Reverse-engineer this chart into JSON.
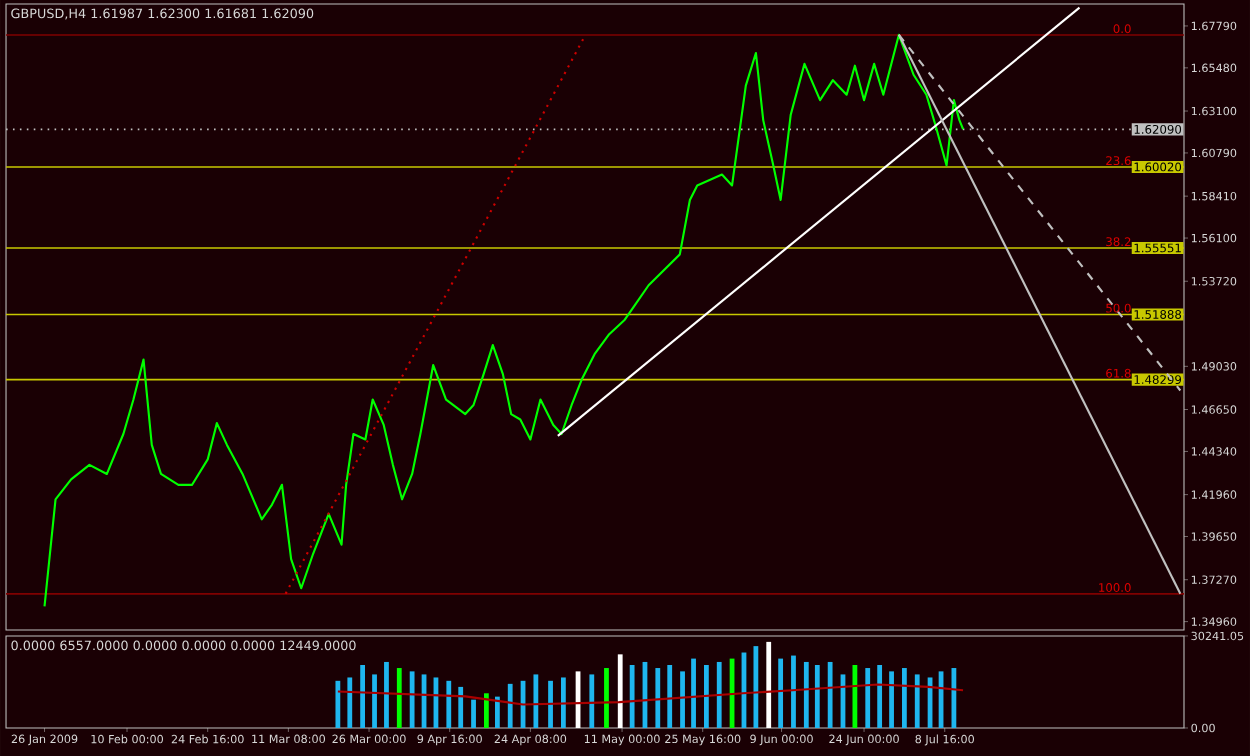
{
  "chart_data": [
    {
      "type": "line",
      "title": "GBPUSD,H4  1.61987 1.62300 1.61681 1.62090",
      "xlim": [
        "2009-01-19T00:00",
        "2009-08-21T04:00"
      ],
      "ylim": [
        1.345,
        1.69
      ],
      "tick_labels": "y",
      "yticks": [
        {
          "value": 1.6779,
          "label": "1.67790"
        },
        {
          "value": 1.6548,
          "label": "1.65480"
        },
        {
          "value": 1.631,
          "label": "1.63100"
        },
        {
          "value": 1.6079,
          "label": "1.60790"
        },
        {
          "value": 1.5841,
          "label": "1.58410"
        },
        {
          "value": 1.561,
          "label": "1.56100"
        },
        {
          "value": 1.5372,
          "label": "1.53720"
        },
        {
          "value": 1.4903,
          "label": "1.49030"
        },
        {
          "value": 1.4665,
          "label": "1.46650"
        },
        {
          "value": 1.4434,
          "label": "1.44340"
        },
        {
          "value": 1.4196,
          "label": "1.41960"
        },
        {
          "value": 1.3965,
          "label": "1.39650"
        },
        {
          "value": 1.3727,
          "label": "1.37270"
        },
        {
          "value": 1.3496,
          "label": "1.34960"
        }
      ],
      "series": [
        {
          "color": "#00ff00",
          "x": [
            "2009-01-26T00:00",
            "2009-01-28T00:00",
            "2009-01-30T20:00",
            "2009-02-03T04:00",
            "2009-02-06T08:00",
            "2009-02-09T08:00",
            "2009-02-11T04:00",
            "2009-02-13T00:00",
            "2009-02-14T12:00",
            "2009-02-16T04:00",
            "2009-02-19T08:00",
            "2009-02-21T20:00",
            "2009-02-24T16:00",
            "2009-02-26T08:00",
            "2009-02-28T04:00",
            "2009-03-03T00:00",
            "2009-03-06T12:00",
            "2009-03-08T08:00",
            "2009-03-10T04:00",
            "2009-03-11T20:00",
            "2009-03-13T16:00",
            "2009-03-15T20:00",
            "2009-03-18T16:00",
            "2009-03-21T00:00",
            "2009-03-21T20:00",
            "2009-03-23T04:00",
            "2009-03-25T08:00",
            "2009-03-26T16:00",
            "2009-03-28T16:00",
            "2009-03-30T08:00",
            "2009-04-01T00:00",
            "2009-04-02T20:00",
            "2009-04-04T08:00",
            "2009-04-06T16:00",
            "2009-04-09T00:00",
            "2009-04-12T12:00",
            "2009-04-14T00:00",
            "2009-04-15T20:00",
            "2009-04-17T12:00",
            "2009-04-19T08:00",
            "2009-04-20T20:00",
            "2009-04-22T12:00",
            "2009-04-24T08:00",
            "2009-04-26T04:00",
            "2009-04-28T12:00",
            "2009-04-30T00:00",
            "2009-05-01T20:00",
            "2009-05-03T16:00",
            "2009-05-06T00:00",
            "2009-05-08T16:00",
            "2009-05-11T12:00",
            "2009-05-13T08:00",
            "2009-05-15T20:00",
            "2009-05-21T12:00",
            "2009-05-23T08:00",
            "2009-05-24T16:00",
            "2009-05-29T04:00",
            "2009-05-31T00:00",
            "2009-06-01T12:00",
            "2009-06-02T12:00",
            "2009-06-04T08:00",
            "2009-06-05T16:00",
            "2009-06-07T12:00",
            "2009-06-08T20:00",
            "2009-06-10T16:00",
            "2009-06-13T04:00",
            "2009-06-16T00:00",
            "2009-06-18T08:00",
            "2009-06-20T20:00",
            "2009-06-22T08:00",
            "2009-06-24T00:00",
            "2009-06-25T20:00",
            "2009-06-27T12:00",
            "2009-06-30T08:00",
            "2009-07-03T00:00",
            "2009-07-05T08:00",
            "2009-07-07T00:00",
            "2009-07-09T00:00",
            "2009-07-10T08:00",
            "2009-07-11T08:00",
            "2009-07-12T00:00"
          ],
          "values": [
            1.358,
            1.417,
            1.428,
            1.436,
            1.431,
            1.453,
            1.472,
            1.494,
            1.447,
            1.431,
            1.425,
            1.425,
            1.439,
            1.459,
            1.447,
            1.431,
            1.406,
            1.414,
            1.425,
            1.384,
            1.368,
            1.387,
            1.409,
            1.392,
            1.425,
            1.453,
            1.45,
            1.472,
            1.458,
            1.436,
            1.417,
            1.431,
            1.453,
            1.491,
            1.472,
            1.464,
            1.469,
            1.486,
            1.502,
            1.486,
            1.464,
            1.461,
            1.45,
            1.472,
            1.458,
            1.453,
            1.469,
            1.483,
            1.497,
            1.508,
            1.516,
            1.524,
            1.535,
            1.552,
            1.582,
            1.59,
            1.596,
            1.59,
            1.623,
            1.645,
            1.663,
            1.626,
            1.601,
            1.582,
            1.629,
            1.657,
            1.637,
            1.648,
            1.64,
            1.656,
            1.637,
            1.657,
            1.64,
            1.673,
            1.651,
            1.64,
            1.623,
            1.601,
            1.637,
            1.626,
            1.621
          ]
        },
        {
          "color": "#ffffff",
          "x": [
            "2009-04-29T08:00",
            "2009-08-02T04:00"
          ],
          "values": [
            1.452,
            1.688
          ]
        },
        {
          "color": "#cc0000",
          "line_style": "dotted",
          "x": [
            "2009-03-10T20:00",
            "2009-05-04T04:00"
          ],
          "values": [
            1.365,
            1.672
          ]
        },
        {
          "color": "#c0c0c0",
          "x": [
            "2009-06-30T08:00",
            "2009-08-20T12:00"
          ],
          "values": [
            1.673,
            1.365
          ]
        },
        {
          "color": "#c0c0c0",
          "line_style": "dashed",
          "x": [
            "2009-06-30T08:00",
            "2009-08-20T12:00"
          ],
          "values": [
            1.673,
            1.477
          ]
        }
      ],
      "ref_lines": [
        {
          "axis": "y",
          "value": 1.6729,
          "label": null,
          "color": "#800000"
        },
        {
          "axis": "y",
          "value": 1.6002,
          "label": "1.60020",
          "color": "#c8c800"
        },
        {
          "axis": "y",
          "value": 1.55551,
          "label": "1.55551",
          "color": "#c8c800"
        },
        {
          "axis": "y",
          "value": 1.51888,
          "label": "1.51888",
          "color": "#c8c800"
        },
        {
          "axis": "y",
          "value": 1.48299,
          "label": "1.48299",
          "color": "#c8c800"
        },
        {
          "axis": "y",
          "value": 1.3649,
          "label": null,
          "color": "#800000"
        },
        {
          "axis": "y",
          "value": 1.6209,
          "label": "1.62090",
          "color": "#c0c0c0",
          "line_style": "dotted"
        }
      ],
      "annotations": [
        {
          "text": "0.0",
          "y": 1.6729
        },
        {
          "text": "23.6",
          "y": 1.6002
        },
        {
          "text": "38.2",
          "y": 1.55551
        },
        {
          "text": "50.0",
          "y": 1.51888
        },
        {
          "text": "61.8",
          "y": 1.48299
        },
        {
          "text": "100.0",
          "y": 1.3649
        }
      ]
    },
    {
      "type": "bar",
      "title": "0.0000 6557.0000 0.0000 0.0000 0.0000 12449.0000",
      "xlim": [
        "2009-01-19T00:00",
        "2009-08-21T04:00"
      ],
      "ylim": [
        0,
        30241.05
      ],
      "xticks": [
        {
          "value": "2009-01-26T00:00",
          "label": "26 Jan 2009"
        },
        {
          "value": "2009-02-10T00:00",
          "label": "10 Feb 00:00"
        },
        {
          "value": "2009-02-24T16:00",
          "label": "24 Feb 16:00"
        },
        {
          "value": "2009-03-11T08:00",
          "label": "11 Mar 08:00"
        },
        {
          "value": "2009-03-26T00:00",
          "label": "26 Mar 00:00"
        },
        {
          "value": "2009-04-09T16:00",
          "label": "9 Apr 16:00"
        },
        {
          "value": "2009-04-24T08:00",
          "label": "24 Apr 08:00"
        },
        {
          "value": "2009-05-11T00:00",
          "label": "11 May 00:00"
        },
        {
          "value": "2009-05-25T16:00",
          "label": "25 May 16:00"
        },
        {
          "value": "2009-06-09T00:00",
          "label": "9 Jun 00:00"
        },
        {
          "value": "2009-06-24T00:00",
          "label": "24 Jun 00:00"
        },
        {
          "value": "2009-07-08T16:00",
          "label": "8 Jul 16:00"
        }
      ],
      "yticks": [
        {
          "value": 0,
          "label": "0.00"
        },
        {
          "value": 30241.05,
          "label": "30241.05"
        }
      ],
      "series": [
        {
          "x": [
            "2009-03-20T08:00",
            "2009-03-22T12:00",
            "2009-03-24T20:00",
            "2009-03-27T00:00",
            "2009-03-29T04:00",
            "2009-03-31T12:00",
            "2009-04-02T20:00",
            "2009-04-05T00:00",
            "2009-04-07T04:00",
            "2009-04-09T12:00",
            "2009-04-11T16:00",
            "2009-04-14T00:00",
            "2009-04-16T08:00",
            "2009-04-18T08:00",
            "2009-04-20T16:00",
            "2009-04-23T00:00",
            "2009-04-25T08:00",
            "2009-04-28T00:00",
            "2009-04-30T08:00",
            "2009-05-03T00:00",
            "2009-05-05T12:00",
            "2009-05-08T04:00",
            "2009-05-10T16:00",
            "2009-05-12T20:00",
            "2009-05-15T04:00",
            "2009-05-17T12:00",
            "2009-05-19T16:00",
            "2009-05-22T00:00",
            "2009-05-24T00:00",
            "2009-05-26T08:00",
            "2009-05-28T16:00",
            "2009-05-31T00:00",
            "2009-06-02T04:00",
            "2009-06-04T08:00",
            "2009-06-06T16:00",
            "2009-06-08T20:00",
            "2009-06-11T04:00",
            "2009-06-13T12:00",
            "2009-06-15T12:00",
            "2009-06-17T20:00",
            "2009-06-20T04:00",
            "2009-06-22T08:00",
            "2009-06-24T16:00",
            "2009-06-26T20:00",
            "2009-06-29T00:00",
            "2009-07-01T08:00",
            "2009-07-03T16:00",
            "2009-07-06T00:00",
            "2009-07-08T00:00",
            "2009-07-10T08:00"
          ],
          "values": [
            15500,
            16600,
            20700,
            17600,
            21700,
            19700,
            18600,
            17600,
            16600,
            15500,
            13500,
            9300,
            11400,
            10300,
            14500,
            15500,
            17600,
            15500,
            16600,
            18600,
            17600,
            19700,
            24200,
            20700,
            21700,
            19700,
            20700,
            18600,
            22800,
            20700,
            21700,
            22800,
            24800,
            26900,
            28300,
            22800,
            23800,
            21700,
            20700,
            21700,
            17600,
            20700,
            19700,
            20700,
            18600,
            19700,
            17600,
            16600,
            18600,
            19700
          ],
          "colors": [
            "#1fb6ef",
            "#1fb6ef",
            "#1fb6ef",
            "#1fb6ef",
            "#1fb6ef",
            "#00ff00",
            "#1fb6ef",
            "#1fb6ef",
            "#1fb6ef",
            "#1fb6ef",
            "#1fb6ef",
            "#1fb6ef",
            "#00ff00",
            "#1fb6ef",
            "#1fb6ef",
            "#1fb6ef",
            "#1fb6ef",
            "#1fb6ef",
            "#1fb6ef",
            "#ffffff",
            "#1fb6ef",
            "#00ff00",
            "#ffffff",
            "#1fb6ef",
            "#1fb6ef",
            "#1fb6ef",
            "#1fb6ef",
            "#1fb6ef",
            "#1fb6ef",
            "#1fb6ef",
            "#1fb6ef",
            "#00ff00",
            "#1fb6ef",
            "#1fb6ef",
            "#ffffff",
            "#1fb6ef",
            "#1fb6ef",
            "#1fb6ef",
            "#1fb6ef",
            "#1fb6ef",
            "#1fb6ef",
            "#00ff00",
            "#1fb6ef",
            "#1fb6ef",
            "#1fb6ef",
            "#1fb6ef",
            "#1fb6ef",
            "#1fb6ef",
            "#1fb6ef",
            "#1fb6ef"
          ]
        },
        {
          "type": "line",
          "color": "#aa0000",
          "x": [
            "2009-03-20T08:00",
            "2009-04-12T12:00",
            "2009-04-23T00:00",
            "2009-05-10T12:00",
            "2009-06-02T00:00",
            "2009-06-11T00:00",
            "2009-06-26T12:00",
            "2009-07-05T16:00",
            "2009-07-12T00:00"
          ],
          "values": [
            12000,
            10400,
            7700,
            8500,
            11400,
            12400,
            14300,
            13500,
            12400
          ]
        }
      ]
    }
  ]
}
